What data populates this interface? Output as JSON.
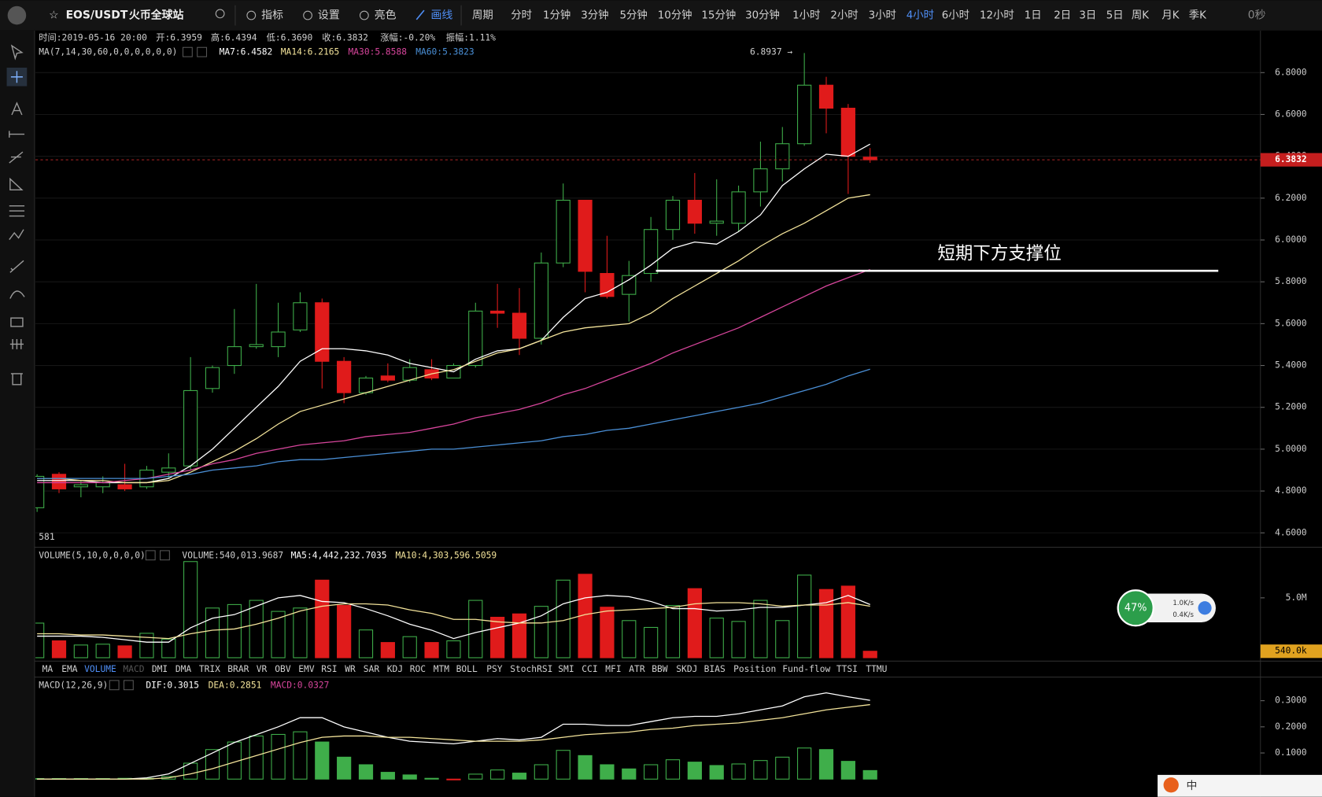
{
  "toolbar": {
    "pair": "EOS/USDT",
    "exchange": "火币全球站",
    "tools": [
      "指标",
      "设置",
      "亮色",
      "画线"
    ],
    "periods": [
      "周期",
      "分时",
      "1分钟",
      "3分钟",
      "5分钟",
      "10分钟",
      "15分钟",
      "30分钟",
      "1小时",
      "2小时",
      "3小时",
      "4小时",
      "6小时",
      "12小时",
      "1日",
      "2日",
      "3日",
      "5日",
      "周K",
      "月K",
      "季K"
    ],
    "timer": "0秒"
  },
  "info": [
    "时间:2019-05-16 20:00",
    "开:6.3959",
    "高:6.4394",
    "低:6.3690",
    "收:6.3832",
    "涨幅:-0.20%",
    "振幅:1.11%"
  ],
  "chart_data": [
    {
      "type": "candlestick",
      "legend_title": "MA(7,14,30,60,0,0,0,0,0,0)",
      "up_color": "#3fae4a",
      "down_color": "#e01b1b",
      "open": [
        4.72,
        4.88,
        4.82,
        4.82,
        4.83,
        4.82,
        4.89,
        4.92,
        5.29,
        5.4,
        5.49,
        5.49,
        5.57,
        5.7,
        5.42,
        5.27,
        5.35,
        5.33,
        5.38,
        5.34,
        5.4,
        5.66,
        5.65,
        5.53,
        5.89,
        6.19,
        5.84,
        5.74,
        5.84,
        6.05,
        6.19,
        6.08,
        6.08,
        6.23,
        6.34,
        6.46,
        6.74,
        6.63,
        6.3959
      ],
      "high": [
        4.88,
        4.89,
        4.85,
        4.87,
        4.93,
        4.92,
        4.98,
        5.44,
        5.4,
        5.67,
        5.79,
        5.7,
        5.75,
        5.72,
        5.44,
        5.35,
        5.41,
        5.43,
        5.43,
        5.41,
        5.7,
        5.79,
        5.77,
        5.94,
        6.27,
        6.19,
        6.02,
        5.9,
        6.11,
        6.21,
        6.32,
        6.29,
        6.26,
        6.47,
        6.54,
        6.8937,
        6.78,
        6.65,
        6.4394
      ],
      "low": [
        4.7,
        4.79,
        4.77,
        4.79,
        4.8,
        4.81,
        4.86,
        4.9,
        5.27,
        5.36,
        5.48,
        5.44,
        5.56,
        5.29,
        5.22,
        5.26,
        5.32,
        5.32,
        5.33,
        5.34,
        5.39,
        5.58,
        5.45,
        5.5,
        5.87,
        5.75,
        5.72,
        5.61,
        5.8,
        6.0,
        6.03,
        6.02,
        6.04,
        6.16,
        6.28,
        6.45,
        6.51,
        6.22,
        6.369
      ],
      "close": [
        4.87,
        4.81,
        4.83,
        4.84,
        4.81,
        4.9,
        4.91,
        5.28,
        5.39,
        5.49,
        5.5,
        5.56,
        5.7,
        5.42,
        5.27,
        5.34,
        5.33,
        5.39,
        5.34,
        5.4,
        5.66,
        5.65,
        5.53,
        5.89,
        6.19,
        5.85,
        5.73,
        5.83,
        6.05,
        6.19,
        6.08,
        6.09,
        6.23,
        6.34,
        6.46,
        6.74,
        6.63,
        6.4,
        6.3832
      ],
      "series": [
        {
          "name": "MA7:6.4582",
          "color": "#ffffff",
          "values": [
            4.85,
            4.85,
            4.85,
            4.84,
            4.84,
            4.84,
            4.86,
            4.92,
            5.0,
            5.1,
            5.2,
            5.3,
            5.42,
            5.48,
            5.48,
            5.47,
            5.45,
            5.41,
            5.39,
            5.37,
            5.43,
            5.47,
            5.48,
            5.52,
            5.63,
            5.72,
            5.75,
            5.81,
            5.88,
            5.96,
            5.99,
            5.98,
            6.04,
            6.12,
            6.26,
            6.34,
            6.41,
            6.4,
            6.4582
          ]
        },
        {
          "name": "MA14:6.2165",
          "color": "#f3e39a",
          "values": [
            4.86,
            4.86,
            4.85,
            4.85,
            4.84,
            4.84,
            4.85,
            4.89,
            4.94,
            4.99,
            5.05,
            5.12,
            5.18,
            5.21,
            5.24,
            5.27,
            5.3,
            5.33,
            5.36,
            5.38,
            5.42,
            5.46,
            5.48,
            5.52,
            5.56,
            5.58,
            5.59,
            5.6,
            5.65,
            5.72,
            5.78,
            5.84,
            5.9,
            5.97,
            6.03,
            6.08,
            6.14,
            6.2,
            6.2165
          ]
        },
        {
          "name": "MA30:5.8588",
          "color": "#d6459b",
          "values": [
            4.84,
            4.84,
            4.84,
            4.84,
            4.85,
            4.86,
            4.88,
            4.9,
            4.93,
            4.95,
            4.98,
            5.0,
            5.02,
            5.03,
            5.04,
            5.06,
            5.07,
            5.08,
            5.1,
            5.12,
            5.15,
            5.17,
            5.19,
            5.22,
            5.26,
            5.29,
            5.33,
            5.37,
            5.41,
            5.46,
            5.5,
            5.54,
            5.58,
            5.63,
            5.68,
            5.73,
            5.78,
            5.82,
            5.8588
          ]
        },
        {
          "name": "MA60:5.3823",
          "color": "#4a8fd6",
          "values": [
            4.86,
            4.86,
            4.86,
            4.86,
            4.86,
            4.86,
            4.87,
            4.88,
            4.9,
            4.91,
            4.92,
            4.94,
            4.95,
            4.95,
            4.96,
            4.97,
            4.98,
            4.99,
            5.0,
            5.0,
            5.01,
            5.02,
            5.03,
            5.04,
            5.06,
            5.07,
            5.09,
            5.1,
            5.12,
            5.14,
            5.16,
            5.18,
            5.2,
            5.22,
            5.25,
            5.28,
            5.31,
            5.35,
            5.3823
          ]
        }
      ],
      "ylim": [
        4.535,
        6.985
      ],
      "yticks": [
        {
          "value": 6.8,
          "label": "6.8000"
        },
        {
          "value": 6.6,
          "label": "6.6000"
        },
        {
          "value": 6.4,
          "label": "6.4000"
        },
        {
          "value": 6.2,
          "label": "6.2000"
        },
        {
          "value": 6.0,
          "label": "6.0000"
        },
        {
          "value": 5.8,
          "label": "5.8000"
        },
        {
          "value": 5.6,
          "label": "5.6000"
        },
        {
          "value": 5.4,
          "label": "5.4000"
        },
        {
          "value": 5.2,
          "label": "5.2000"
        },
        {
          "value": 5.0,
          "label": "5.0000"
        },
        {
          "value": 4.8,
          "label": "4.8000"
        },
        {
          "value": 4.6,
          "label": "4.6000"
        }
      ],
      "grid": true,
      "last_price": 6.3832,
      "high_label": "6.8937 →",
      "cut_label": "581"
    },
    {
      "type": "bar",
      "legend_title": "VOLUME(5,10,0,0,0,0)",
      "label": "VOLUME:540,013.9687",
      "values": [
        2890000,
        1410000,
        1060000,
        1130000,
        990000,
        2040000,
        1550000,
        8030000,
        4150000,
        4440000,
        4790000,
        3870000,
        4150000,
        6480000,
        4370000,
        2320000,
        1270000,
        1760000,
        1270000,
        1410000,
        4790000,
        3380000,
        3660000,
        4290000,
        6480000,
        6970000,
        4220000,
        3100000,
        2530000,
        4360000,
        5770000,
        3310000,
        3030000,
        4790000,
        3100000,
        6900000,
        5700000,
        5980000,
        540013.9687
      ],
      "series": [
        {
          "name": "MA5:4,442,232.7035",
          "color": "#ffffff",
          "values": [
            1800000,
            1800000,
            1800000,
            1700000,
            1500000,
            1300000,
            1300000,
            2500000,
            3300000,
            3600000,
            4300000,
            5000000,
            5200000,
            4700000,
            4600000,
            4100000,
            3500000,
            2800000,
            2300000,
            1600000,
            2100000,
            2500000,
            2900000,
            3500000,
            4500000,
            5000000,
            5200000,
            5100000,
            4700000,
            4100000,
            4100000,
            3900000,
            4000000,
            4200000,
            4200000,
            4400000,
            4600000,
            5200000,
            4442232.7035
          ]
        },
        {
          "name": "MA10:4,303,596.5059",
          "color": "#f3e39a",
          "values": [
            2000000,
            2000000,
            1900000,
            1900000,
            1800000,
            1700000,
            1600000,
            2000000,
            2300000,
            2400000,
            2800000,
            3300000,
            3900000,
            4300000,
            4500000,
            4500000,
            4400000,
            4000000,
            3700000,
            3200000,
            3200000,
            3000000,
            2900000,
            2900000,
            3100000,
            3600000,
            3900000,
            4000000,
            4100000,
            4200000,
            4500000,
            4600000,
            4600000,
            4500000,
            4300000,
            4400000,
            4400000,
            4600000,
            4303596.5059
          ]
        }
      ],
      "ylim": [
        0,
        9152000
      ],
      "yticks": [
        {
          "value": 5000000,
          "label": "5.0M"
        }
      ],
      "marker_label": "540.0k"
    },
    {
      "type": "macd",
      "legend_title": "MACD(12,26,9)",
      "label": "MACD:0.0327",
      "values": [
        0.002,
        0.002,
        0.002,
        0.002,
        0.003,
        0.003,
        0.01,
        0.061,
        0.113,
        0.142,
        0.165,
        0.171,
        0.181,
        0.142,
        0.084,
        0.055,
        0.026,
        0.016,
        0.003,
        -0.003,
        0.019,
        0.035,
        0.023,
        0.055,
        0.11,
        0.09,
        0.055,
        0.039,
        0.055,
        0.074,
        0.065,
        0.052,
        0.058,
        0.071,
        0.084,
        0.119,
        0.113,
        0.068,
        0.0327
      ],
      "series": [
        {
          "name": "DIF:0.3015",
          "color": "#ffffff",
          "values": [
            0,
            0,
            0,
            0,
            0,
            0.005,
            0.02,
            0.06,
            0.1,
            0.14,
            0.17,
            0.2,
            0.235,
            0.235,
            0.2,
            0.18,
            0.16,
            0.145,
            0.14,
            0.135,
            0.145,
            0.155,
            0.15,
            0.16,
            0.21,
            0.21,
            0.205,
            0.205,
            0.22,
            0.235,
            0.24,
            0.24,
            0.25,
            0.265,
            0.28,
            0.315,
            0.33,
            0.315,
            0.3015
          ]
        },
        {
          "name": "DEA:0.2851",
          "color": "#f3e39a",
          "values": [
            0,
            0,
            0,
            0,
            0,
            0,
            0.005,
            0.02,
            0.04,
            0.065,
            0.09,
            0.115,
            0.14,
            0.16,
            0.165,
            0.165,
            0.16,
            0.16,
            0.155,
            0.15,
            0.145,
            0.145,
            0.145,
            0.15,
            0.16,
            0.17,
            0.175,
            0.18,
            0.19,
            0.195,
            0.205,
            0.21,
            0.215,
            0.225,
            0.235,
            0.25,
            0.265,
            0.275,
            0.2851
          ]
        }
      ],
      "ylim": [
        -0.0129,
        0.3839
      ],
      "yticks": [
        {
          "value": 0.3,
          "label": "0.3000"
        },
        {
          "value": 0.2,
          "label": "0.2000"
        },
        {
          "value": 0.1,
          "label": "0.1000"
        }
      ]
    }
  ],
  "indicator_tabs": [
    "MA",
    "EMA",
    "VOLUME",
    "MACD",
    "DMI",
    "DMA",
    "TRIX",
    "BRAR",
    "VR",
    "OBV",
    "EMV",
    "RSI",
    "WR",
    "SAR",
    "KDJ",
    "ROC",
    "MTM",
    "BOLL",
    "PSY",
    "StochRSI",
    "SMI",
    "CCI",
    "MFI",
    "ATR",
    "BBW",
    "SKDJ",
    "BIAS",
    "Position",
    "Fund-flow",
    "TTSI",
    "TTMU"
  ],
  "annotation": "短期下方支撑位",
  "widget": {
    "percent": "47%",
    "up": "1.0K/s",
    "down": "0.4K/s"
  },
  "tray": "中"
}
